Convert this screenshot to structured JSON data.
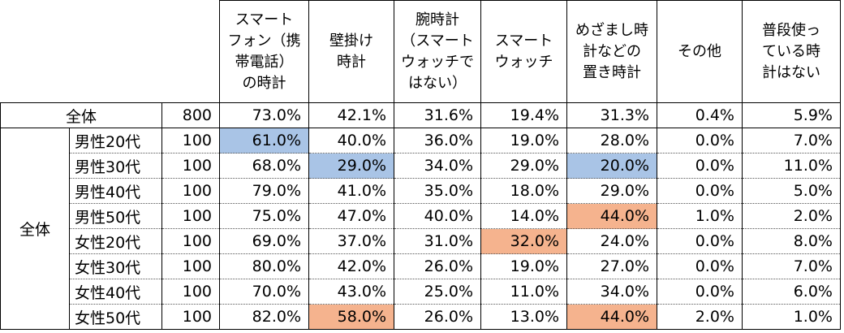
{
  "headers": [
    "スマートフォン（携帯電話）の時計",
    "壁掛け時計",
    "腕時計（スマートウォッチではない）",
    "スマートウォッチ",
    "めざまし時計などの置き時計",
    "その他",
    "普段使っている時計はない"
  ],
  "header_lines": [
    [
      "スマート",
      "フォン（携",
      "帯電話）",
      "の時計"
    ],
    [
      "壁掛け",
      "時計"
    ],
    [
      "腕時計",
      "（スマート",
      "ウォッチで",
      "はない）"
    ],
    [
      "スマート",
      "ウォッチ"
    ],
    [
      "めざまし時",
      "計などの",
      "置き時計"
    ],
    [
      "その他"
    ],
    [
      "普段使っ",
      "ている時",
      "計はない"
    ]
  ],
  "total_row": {
    "label": "全体",
    "n": "800",
    "values": [
      "73.0%",
      "42.1%",
      "31.6%",
      "19.4%",
      "31.3%",
      "0.4%",
      "5.9%"
    ]
  },
  "group_label": "全体",
  "rows": [
    {
      "label": "男性20代",
      "n": "100",
      "values": [
        "61.0%",
        "40.0%",
        "36.0%",
        "19.0%",
        "28.0%",
        "0.0%",
        "7.0%"
      ]
    },
    {
      "label": "男性30代",
      "n": "100",
      "values": [
        "68.0%",
        "29.0%",
        "34.0%",
        "29.0%",
        "20.0%",
        "0.0%",
        "11.0%"
      ]
    },
    {
      "label": "男性40代",
      "n": "100",
      "values": [
        "79.0%",
        "41.0%",
        "35.0%",
        "18.0%",
        "29.0%",
        "0.0%",
        "5.0%"
      ]
    },
    {
      "label": "男性50代",
      "n": "100",
      "values": [
        "75.0%",
        "47.0%",
        "40.0%",
        "14.0%",
        "44.0%",
        "1.0%",
        "2.0%"
      ]
    },
    {
      "label": "女性20代",
      "n": "100",
      "values": [
        "69.0%",
        "37.0%",
        "31.0%",
        "32.0%",
        "24.0%",
        "0.0%",
        "8.0%"
      ]
    },
    {
      "label": "女性30代",
      "n": "100",
      "values": [
        "80.0%",
        "42.0%",
        "26.0%",
        "19.0%",
        "27.0%",
        "0.0%",
        "7.0%"
      ]
    },
    {
      "label": "女性40代",
      "n": "100",
      "values": [
        "70.0%",
        "43.0%",
        "25.0%",
        "11.0%",
        "34.0%",
        "0.0%",
        "6.0%"
      ]
    },
    {
      "label": "女性50代",
      "n": "100",
      "values": [
        "82.0%",
        "58.0%",
        "26.0%",
        "13.0%",
        "44.0%",
        "2.0%",
        "1.0%"
      ]
    }
  ],
  "highlights": {
    "low_color": "#a9c4e6",
    "high_color": "#f5b38e",
    "low": [
      [
        0,
        0
      ],
      [
        1,
        1
      ],
      [
        1,
        4
      ]
    ],
    "high": [
      [
        3,
        4
      ],
      [
        4,
        3
      ],
      [
        7,
        1
      ],
      [
        7,
        4
      ]
    ]
  }
}
